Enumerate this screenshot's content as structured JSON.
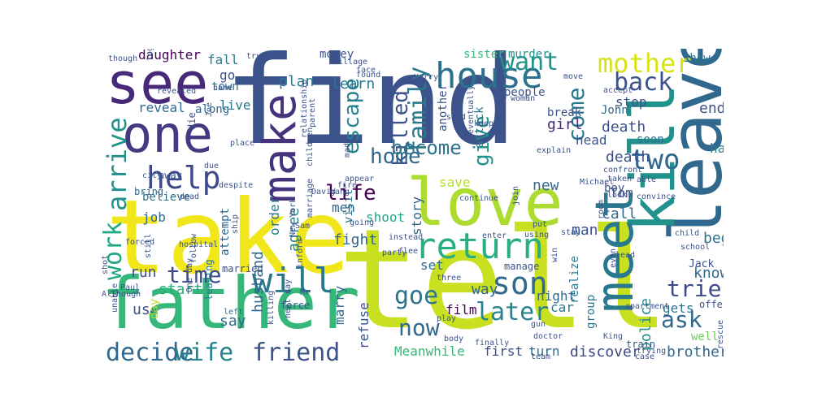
{
  "words": [
    {
      "text": "find",
      "color": "#3b528b"
    },
    {
      "text": "tell",
      "color": "#c8e020"
    },
    {
      "text": "take",
      "color": "#f0e619"
    },
    {
      "text": "father",
      "color": "#35b779"
    },
    {
      "text": "see",
      "color": "#482878"
    },
    {
      "text": "one",
      "color": "#443983"
    },
    {
      "text": "love",
      "color": "#addc30"
    },
    {
      "text": "leave",
      "color": "#31688e"
    },
    {
      "text": "kill",
      "color": "#21918c"
    },
    {
      "text": "meet",
      "color": "#2a788e"
    },
    {
      "text": "house",
      "color": "#2c728e"
    },
    {
      "text": "return",
      "color": "#28ae80"
    },
    {
      "text": "make",
      "color": "#46337e"
    },
    {
      "text": "help",
      "color": "#3e4989"
    },
    {
      "text": "will",
      "color": "#2a788e"
    },
    {
      "text": "mother",
      "color": "#d8e219"
    },
    {
      "text": "back",
      "color": "#3b528b"
    },
    {
      "text": "want",
      "color": "#21918c"
    },
    {
      "text": "work",
      "color": "#22a884"
    },
    {
      "text": "arrive",
      "color": "#21918c"
    },
    {
      "text": "decide",
      "color": "#31688e"
    },
    {
      "text": "wife",
      "color": "#26828e"
    },
    {
      "text": "friend",
      "color": "#3b528b"
    },
    {
      "text": "time",
      "color": "#3e4989"
    },
    {
      "text": "life",
      "color": "#440154"
    },
    {
      "text": "son",
      "color": "#31688e"
    },
    {
      "text": "goe",
      "color": "#2c728e"
    },
    {
      "text": "now",
      "color": "#31688e"
    },
    {
      "text": "later",
      "color": "#26828e"
    },
    {
      "text": "family",
      "color": "#2a788e"
    },
    {
      "text": "killed",
      "color": "#3b528b"
    },
    {
      "text": "home",
      "color": "#31688e"
    },
    {
      "text": "escape",
      "color": "#26828e"
    },
    {
      "text": "become",
      "color": "#2c728e"
    },
    {
      "text": "give",
      "color": "#21918c"
    },
    {
      "text": "come",
      "color": "#2a788e"
    },
    {
      "text": "two",
      "color": "#31688e"
    },
    {
      "text": "trie",
      "color": "#3e4989"
    },
    {
      "text": "ask",
      "color": "#31688e"
    },
    {
      "text": "brother",
      "color": "#31688e"
    },
    {
      "text": "discover",
      "color": "#3e4989"
    },
    {
      "text": "Meanwhile",
      "color": "#35b779"
    },
    {
      "text": "first",
      "color": "#3e4989"
    },
    {
      "text": "turn",
      "color": "#31688e"
    },
    {
      "text": "daughter",
      "color": "#440154"
    },
    {
      "text": "reveal",
      "color": "#31688e"
    },
    {
      "text": "along",
      "color": "#31688e"
    },
    {
      "text": "live",
      "color": "#2a788e"
    },
    {
      "text": "fall",
      "color": "#2a788e"
    },
    {
      "text": "go",
      "color": "#3b528b"
    },
    {
      "text": "town",
      "color": "#2c728e"
    },
    {
      "text": "plan",
      "color": "#2a788e"
    },
    {
      "text": "learn",
      "color": "#2a788e"
    },
    {
      "text": "money",
      "color": "#3b528b"
    },
    {
      "text": "sister",
      "color": "#35b779"
    },
    {
      "text": "murder",
      "color": "#21918c"
    },
    {
      "text": "girl",
      "color": "#482878"
    },
    {
      "text": "head",
      "color": "#3b528b"
    },
    {
      "text": "death",
      "color": "#3b528b"
    },
    {
      "text": "soon",
      "color": "#2c728e"
    },
    {
      "text": "stop",
      "color": "#3b528b"
    },
    {
      "text": "end",
      "color": "#3b528b"
    },
    {
      "text": "show",
      "color": "#2c728e"
    },
    {
      "text": "hand",
      "color": "#2a788e"
    },
    {
      "text": "call",
      "color": "#31688e"
    },
    {
      "text": "begin",
      "color": "#2c728e"
    },
    {
      "text": "know",
      "color": "#31688e"
    },
    {
      "text": "Tom",
      "color": "#3b528b"
    },
    {
      "text": "new",
      "color": "#31688e"
    },
    {
      "text": "man",
      "color": "#3b528b"
    },
    {
      "text": "men",
      "color": "#31688e"
    },
    {
      "text": "save",
      "color": "#b5de2b"
    },
    {
      "text": "shoot",
      "color": "#22a884"
    },
    {
      "text": "story",
      "color": "#31688e"
    },
    {
      "text": "job",
      "color": "#31688e"
    },
    {
      "text": "believe",
      "color": "#2c728e"
    },
    {
      "text": "run",
      "color": "#3b528b"
    },
    {
      "text": "start",
      "color": "#28ae80"
    },
    {
      "text": "use",
      "color": "#3b528b"
    },
    {
      "text": "say",
      "color": "#31688e"
    },
    {
      "text": "fight",
      "color": "#31688e"
    },
    {
      "text": "set",
      "color": "#31688e"
    },
    {
      "text": "film",
      "color": "#440154"
    },
    {
      "text": "night",
      "color": "#31688e"
    },
    {
      "text": "car",
      "color": "#2a788e"
    },
    {
      "text": "way",
      "color": "#31688e"
    },
    {
      "text": "gets",
      "color": "#2c728e"
    },
    {
      "text": "well",
      "color": "#6ece58"
    },
    {
      "text": "Jack",
      "color": "#3b528b"
    },
    {
      "text": "John",
      "color": "#31688e"
    },
    {
      "text": "break",
      "color": "#3b528b"
    },
    {
      "text": "attack",
      "color": "#2a788e"
    },
    {
      "text": "another",
      "color": "#3b528b"
    },
    {
      "text": "visit",
      "color": "#2a788e"
    },
    {
      "text": "agree",
      "color": "#26828e"
    },
    {
      "text": "order",
      "color": "#2a788e"
    },
    {
      "text": "husband",
      "color": "#31688e"
    },
    {
      "text": "marry",
      "color": "#31688e"
    },
    {
      "text": "refuse",
      "color": "#3b528b"
    },
    {
      "text": "police",
      "color": "#21918c"
    },
    {
      "text": "group",
      "color": "#2a788e"
    },
    {
      "text": "realize",
      "color": "#2a788e"
    },
    {
      "text": "people",
      "color": "#3b528b"
    },
    {
      "text": "attempt",
      "color": "#31688e"
    },
    {
      "text": "day",
      "color": "#b5de2b"
    },
    {
      "text": "death",
      "color": "#3b528b"
    },
    {
      "text": "bring",
      "color": "#31688e"
    },
    {
      "text": "away",
      "color": "#3b528b"
    },
    {
      "text": "die",
      "color": "#3b528b"
    },
    {
      "text": "boy",
      "color": "#3b528b"
    },
    {
      "text": "children",
      "color": "#3b528b"
    },
    {
      "text": "manage",
      "color": "#3b528b"
    },
    {
      "text": "offer",
      "color": "#3b528b"
    },
    {
      "text": "King",
      "color": "#3b528b"
    },
    {
      "text": "hospital",
      "color": "#3b528b"
    },
    {
      "text": "city",
      "color": "#31688e"
    },
    {
      "text": "dead",
      "color": "#3b528b"
    },
    {
      "text": "married",
      "color": "#3b528b"
    },
    {
      "text": "leaving",
      "color": "#2a788e"
    },
    {
      "text": "One day",
      "color": "#3b528b"
    },
    {
      "text": "left",
      "color": "#31688e"
    },
    {
      "text": "force",
      "color": "#3b528b"
    },
    {
      "text": "next day",
      "color": "#3b528b"
    },
    {
      "text": "killing",
      "color": "#3b528b"
    },
    {
      "text": "Sam",
      "color": "#3b528b"
    },
    {
      "text": "Mr",
      "color": "#3b528b"
    },
    {
      "text": "David",
      "color": "#3b528b"
    },
    {
      "text": "New York",
      "color": "#3b528b"
    },
    {
      "text": "marriage",
      "color": "#3b528b"
    },
    {
      "text": "parent",
      "color": "#3b528b"
    },
    {
      "text": "gang",
      "color": "#3b528b"
    },
    {
      "text": "fire",
      "color": "#3b528b"
    },
    {
      "text": "appear",
      "color": "#3b528b"
    },
    {
      "text": "made",
      "color": "#3b528b"
    },
    {
      "text": "continue",
      "color": "#3b528b"
    },
    {
      "text": "join",
      "color": "#3b528b"
    },
    {
      "text": "Michael",
      "color": "#3b528b"
    },
    {
      "text": "taken",
      "color": "#3b528b"
    },
    {
      "text": "confront",
      "color": "#3b528b"
    },
    {
      "text": "convince",
      "color": "#3b528b"
    },
    {
      "text": "able",
      "color": "#3b528b"
    },
    {
      "text": "look",
      "color": "#3b528b"
    },
    {
      "text": "explain",
      "color": "#3b528b"
    },
    {
      "text": "room",
      "color": "#3b528b"
    },
    {
      "text": "child",
      "color": "#3b528b"
    },
    {
      "text": "school",
      "color": "#3b528b"
    },
    {
      "text": "lead",
      "color": "#3b528b"
    },
    {
      "text": "even",
      "color": "#3b528b"
    },
    {
      "text": "apartment",
      "color": "#3b528b"
    },
    {
      "text": "train",
      "color": "#3b528b"
    },
    {
      "text": "trying",
      "color": "#3b528b"
    },
    {
      "text": "case",
      "color": "#3b528b"
    },
    {
      "text": "rescue",
      "color": "#3b528b"
    },
    {
      "text": "doctor",
      "color": "#3b528b"
    },
    {
      "text": "win",
      "color": "#3b528b"
    },
    {
      "text": "put",
      "color": "#3b528b"
    },
    {
      "text": "stay",
      "color": "#3b528b"
    },
    {
      "text": "using",
      "color": "#3b528b"
    },
    {
      "text": "enter",
      "color": "#3b528b"
    },
    {
      "text": "gun",
      "color": "#3b528b"
    },
    {
      "text": "team",
      "color": "#3b528b"
    },
    {
      "text": "finally",
      "color": "#3b528b"
    },
    {
      "text": "body",
      "color": "#3b528b"
    },
    {
      "text": "play",
      "color": "#3b528b"
    },
    {
      "text": "three",
      "color": "#3b528b"
    },
    {
      "text": "flee",
      "color": "#3b528b"
    },
    {
      "text": "instead",
      "color": "#3b528b"
    },
    {
      "text": "party",
      "color": "#3b528b"
    },
    {
      "text": "going",
      "color": "#3b528b"
    },
    {
      "text": "inform",
      "color": "#3b528b"
    },
    {
      "text": "shot",
      "color": "#3b528b"
    },
    {
      "text": "Paul",
      "color": "#3b528b"
    },
    {
      "text": "Although",
      "color": "#3b528b"
    },
    {
      "text": "still",
      "color": "#3b528b"
    },
    {
      "text": "forced",
      "color": "#3b528b"
    },
    {
      "text": "follow",
      "color": "#3b528b"
    },
    {
      "text": "ship",
      "color": "#3b528b"
    },
    {
      "text": "unable",
      "color": "#3b528b"
    },
    {
      "text": "despite",
      "color": "#3b528b"
    },
    {
      "text": "due",
      "color": "#3b528b"
    },
    {
      "text": "place",
      "color": "#3b528b"
    },
    {
      "text": "Joe",
      "color": "#3b528b"
    },
    {
      "text": "name",
      "color": "#3b528b"
    },
    {
      "text": "revealed",
      "color": "#3b528b"
    },
    {
      "text": "together",
      "color": "#3b528b"
    },
    {
      "text": "though",
      "color": "#3b528b"
    },
    {
      "text": "try",
      "color": "#3b528b"
    },
    {
      "text": "village",
      "color": "#3b528b"
    },
    {
      "text": "face",
      "color": "#3b528b"
    },
    {
      "text": "found",
      "color": "#3b528b"
    },
    {
      "text": "Harry",
      "color": "#3b528b"
    },
    {
      "text": "move",
      "color": "#3b528b"
    },
    {
      "text": "woman",
      "color": "#3b528b"
    },
    {
      "text": "accept",
      "color": "#3b528b"
    },
    {
      "text": "send",
      "color": "#3b528b"
    },
    {
      "text": "eventually",
      "color": "#3b528b"
    },
    {
      "text": "keep",
      "color": "#3b528b"
    },
    {
      "text": "relationship",
      "color": "#3b528b"
    }
  ]
}
